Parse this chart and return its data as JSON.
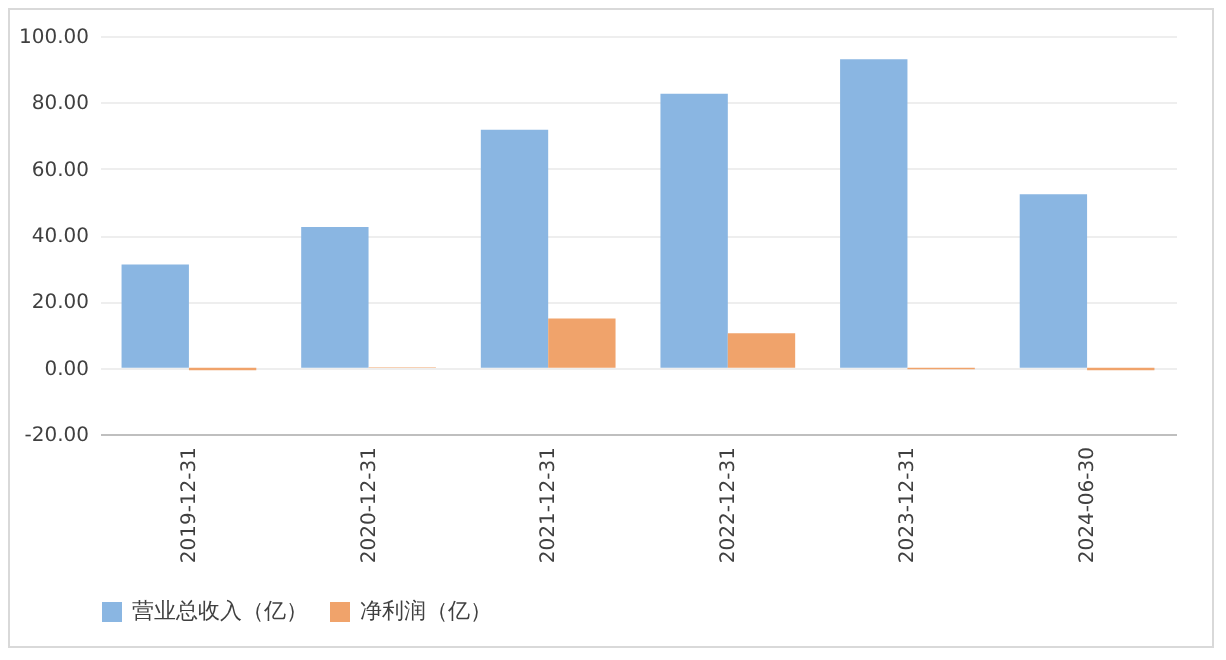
{
  "chart_data": {
    "type": "bar",
    "categories": [
      "2019-12-31",
      "2020-12-31",
      "2021-12-31",
      "2022-12-31",
      "2023-12-31",
      "2024-06-30"
    ],
    "series": [
      {
        "name": "营业总收入（亿）",
        "color": "#8ab6e2",
        "values": [
          31.1,
          42.4,
          71.7,
          82.6,
          93.0,
          52.3
        ]
      },
      {
        "name": "净利润（亿）",
        "color": "#f0a36b",
        "values": [
          -0.8,
          0.1,
          14.8,
          10.4,
          -0.5,
          -0.8
        ]
      }
    ],
    "ylim": [
      -20,
      100
    ],
    "yticks": [
      {
        "value": -20,
        "label": "-20.00"
      },
      {
        "value": 0,
        "label": "0.00"
      },
      {
        "value": 20,
        "label": "20.00"
      },
      {
        "value": 40,
        "label": "40.00"
      },
      {
        "value": 60,
        "label": "60.00"
      },
      {
        "value": 80,
        "label": "80.00"
      },
      {
        "value": 100,
        "label": "100.00"
      }
    ],
    "grid": "y",
    "legend": "bottom"
  }
}
